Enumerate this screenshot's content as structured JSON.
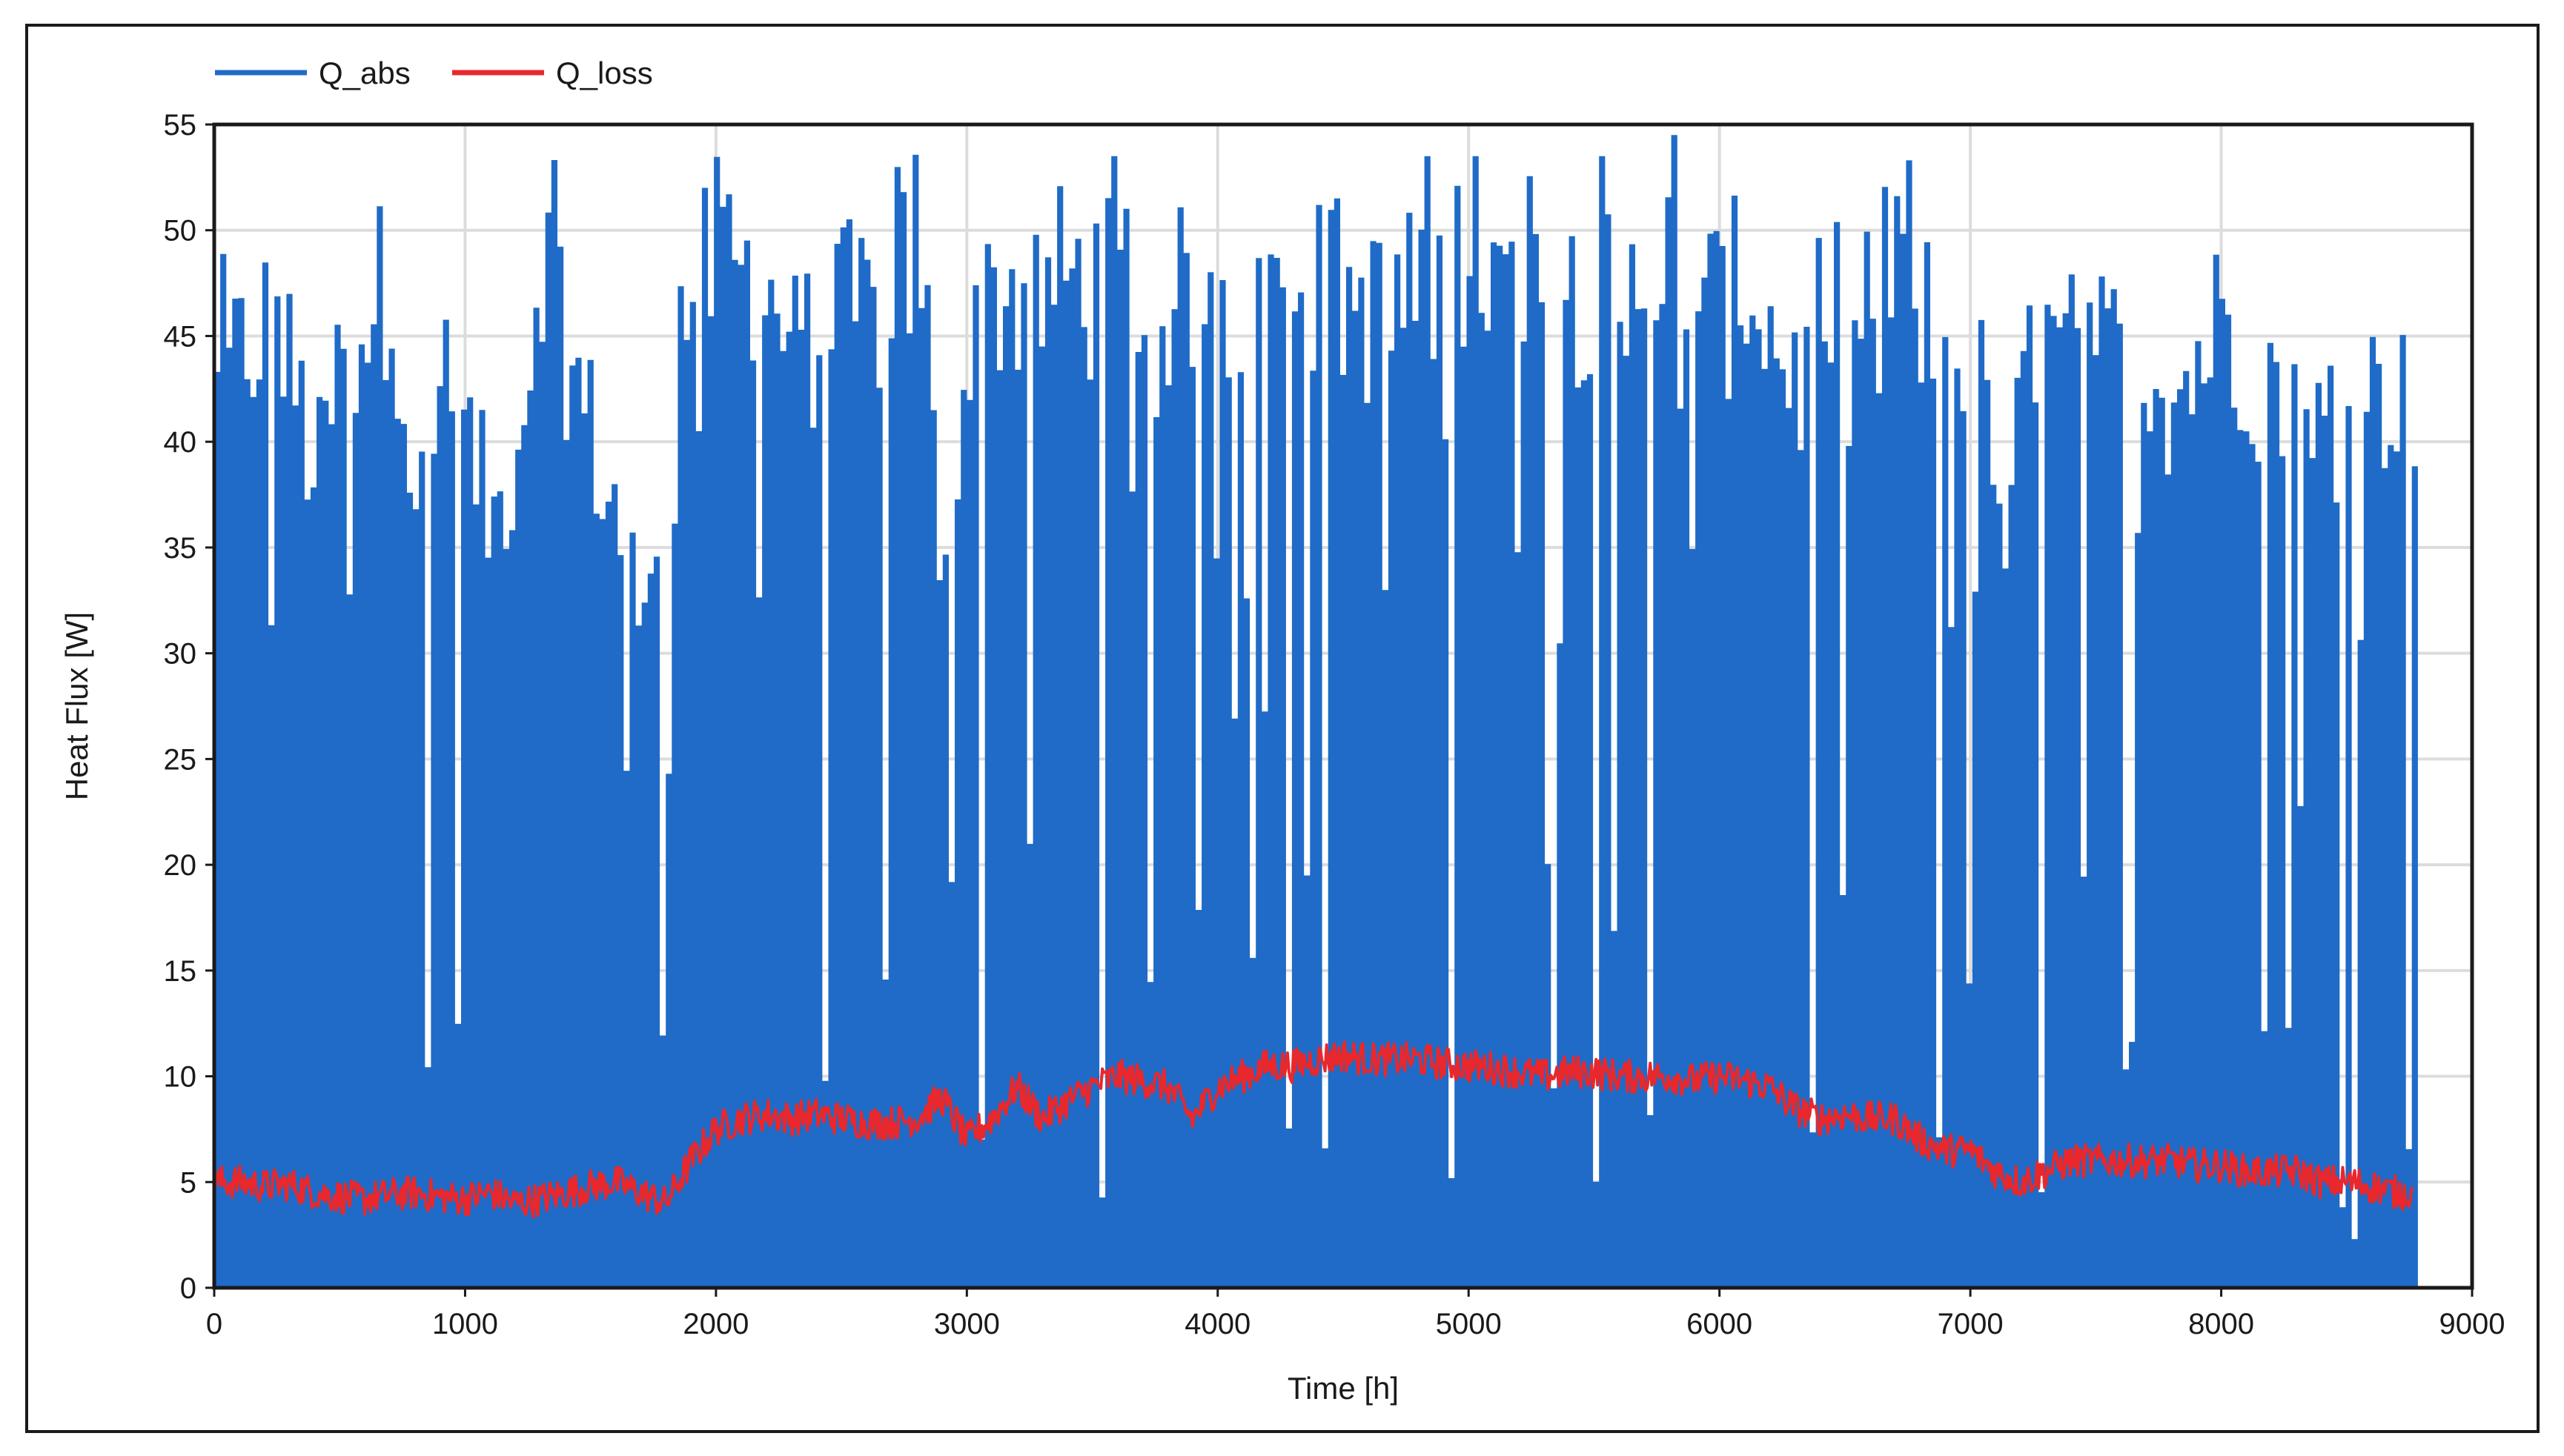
{
  "chart_data": {
    "type": "line",
    "title": "",
    "xlabel": "Time [h]",
    "ylabel": "Heat Flux [W]",
    "xlim": [
      0,
      9000
    ],
    "ylim": [
      0,
      55
    ],
    "x_ticks": [
      0,
      1000,
      2000,
      3000,
      4000,
      5000,
      6000,
      7000,
      8000,
      9000
    ],
    "y_ticks": [
      0,
      5,
      10,
      15,
      20,
      25,
      30,
      35,
      40,
      45,
      50,
      55
    ],
    "grid": true,
    "legend": {
      "placement": "top-left",
      "orientation": "horizontal"
    },
    "series": [
      {
        "name": "Q_abs",
        "color": "#1f6bc7",
        "style": "dense-daily-peaks",
        "x": [
          0,
          100,
          200,
          300,
          400,
          500,
          600,
          700,
          800,
          900,
          1000,
          1100,
          1200,
          1300,
          1400,
          1500,
          1600,
          1700,
          1800,
          1900,
          2000,
          2100,
          2200,
          2300,
          2400,
          2500,
          2600,
          2700,
          2800,
          2900,
          3000,
          3100,
          3200,
          3300,
          3400,
          3500,
          3600,
          3700,
          3800,
          3900,
          4000,
          4100,
          4200,
          4300,
          4400,
          4500,
          4600,
          4700,
          4800,
          4900,
          5000,
          5100,
          5200,
          5300,
          5400,
          5500,
          5600,
          5700,
          5800,
          5900,
          6000,
          6100,
          6200,
          6300,
          6400,
          6500,
          6600,
          6700,
          6800,
          6900,
          7000,
          7100,
          7200,
          7300,
          7400,
          7500,
          7600,
          7700,
          7800,
          7900,
          8000,
          8100,
          8200,
          8300,
          8400,
          8500,
          8600,
          8700,
          8760
        ],
        "y": [
          42,
          44,
          46,
          43,
          38,
          44,
          46,
          48,
          36,
          42,
          40,
          36,
          40,
          50,
          44,
          40,
          36,
          30,
          44,
          47,
          49,
          48,
          46,
          44,
          45,
          46,
          46,
          47,
          50,
          32,
          46,
          47,
          47,
          47,
          48,
          47,
          47,
          45,
          47,
          46,
          47,
          47,
          47,
          48,
          47,
          47,
          46,
          46,
          47,
          48,
          50,
          47,
          47,
          47,
          47,
          48,
          46,
          45,
          52,
          47,
          46,
          48,
          45,
          43,
          42,
          43,
          44,
          48,
          46,
          44,
          44,
          38,
          42,
          44,
          44,
          45,
          43,
          44,
          42,
          44,
          46,
          44,
          42,
          44,
          40,
          42,
          42,
          43,
          36
        ]
      },
      {
        "name": "Q_loss",
        "color": "#e8282c",
        "style": "noisy-line",
        "x": [
          0,
          100,
          200,
          300,
          400,
          500,
          600,
          700,
          800,
          900,
          1000,
          1100,
          1200,
          1300,
          1400,
          1500,
          1600,
          1700,
          1800,
          1900,
          2000,
          2100,
          2200,
          2300,
          2400,
          2500,
          2600,
          2700,
          2800,
          2900,
          3000,
          3100,
          3200,
          3300,
          3400,
          3500,
          3600,
          3700,
          3800,
          3900,
          4000,
          4100,
          4200,
          4300,
          4400,
          4500,
          4600,
          4700,
          4800,
          4900,
          5000,
          5100,
          5200,
          5300,
          5400,
          5500,
          5600,
          5700,
          5800,
          5900,
          6000,
          6100,
          6200,
          6300,
          6400,
          6500,
          6600,
          6700,
          6800,
          6900,
          7000,
          7100,
          7200,
          7300,
          7400,
          7500,
          7600,
          7700,
          7800,
          7900,
          8000,
          8100,
          8200,
          8300,
          8400,
          8500,
          8600,
          8700,
          8760
        ],
        "y": [
          5.0,
          5.0,
          4.8,
          4.9,
          4.5,
          4.3,
          4.2,
          4.4,
          4.5,
          4.3,
          4.2,
          4.5,
          4.0,
          4.2,
          4.5,
          4.8,
          5.0,
          4.5,
          4.0,
          6.0,
          7.5,
          8.0,
          8.2,
          8.0,
          8.2,
          8.0,
          7.8,
          7.8,
          8.0,
          9.0,
          7.0,
          8.0,
          9.5,
          8.0,
          8.8,
          9.5,
          10.0,
          9.8,
          9.5,
          8.0,
          9.5,
          10.0,
          10.5,
          10.5,
          10.8,
          11.0,
          10.8,
          10.8,
          10.8,
          10.6,
          10.5,
          10.4,
          10.2,
          10.0,
          10.2,
          10.2,
          10.0,
          10.0,
          10.0,
          9.8,
          10.0,
          9.8,
          9.5,
          8.5,
          8.0,
          8.2,
          8.0,
          8.0,
          7.0,
          6.5,
          6.5,
          5.5,
          5.0,
          5.5,
          6.0,
          6.0,
          6.0,
          6.0,
          6.0,
          5.8,
          5.8,
          5.5,
          5.5,
          5.5,
          5.0,
          5.0,
          4.8,
          4.5,
          4.5
        ]
      }
    ]
  }
}
